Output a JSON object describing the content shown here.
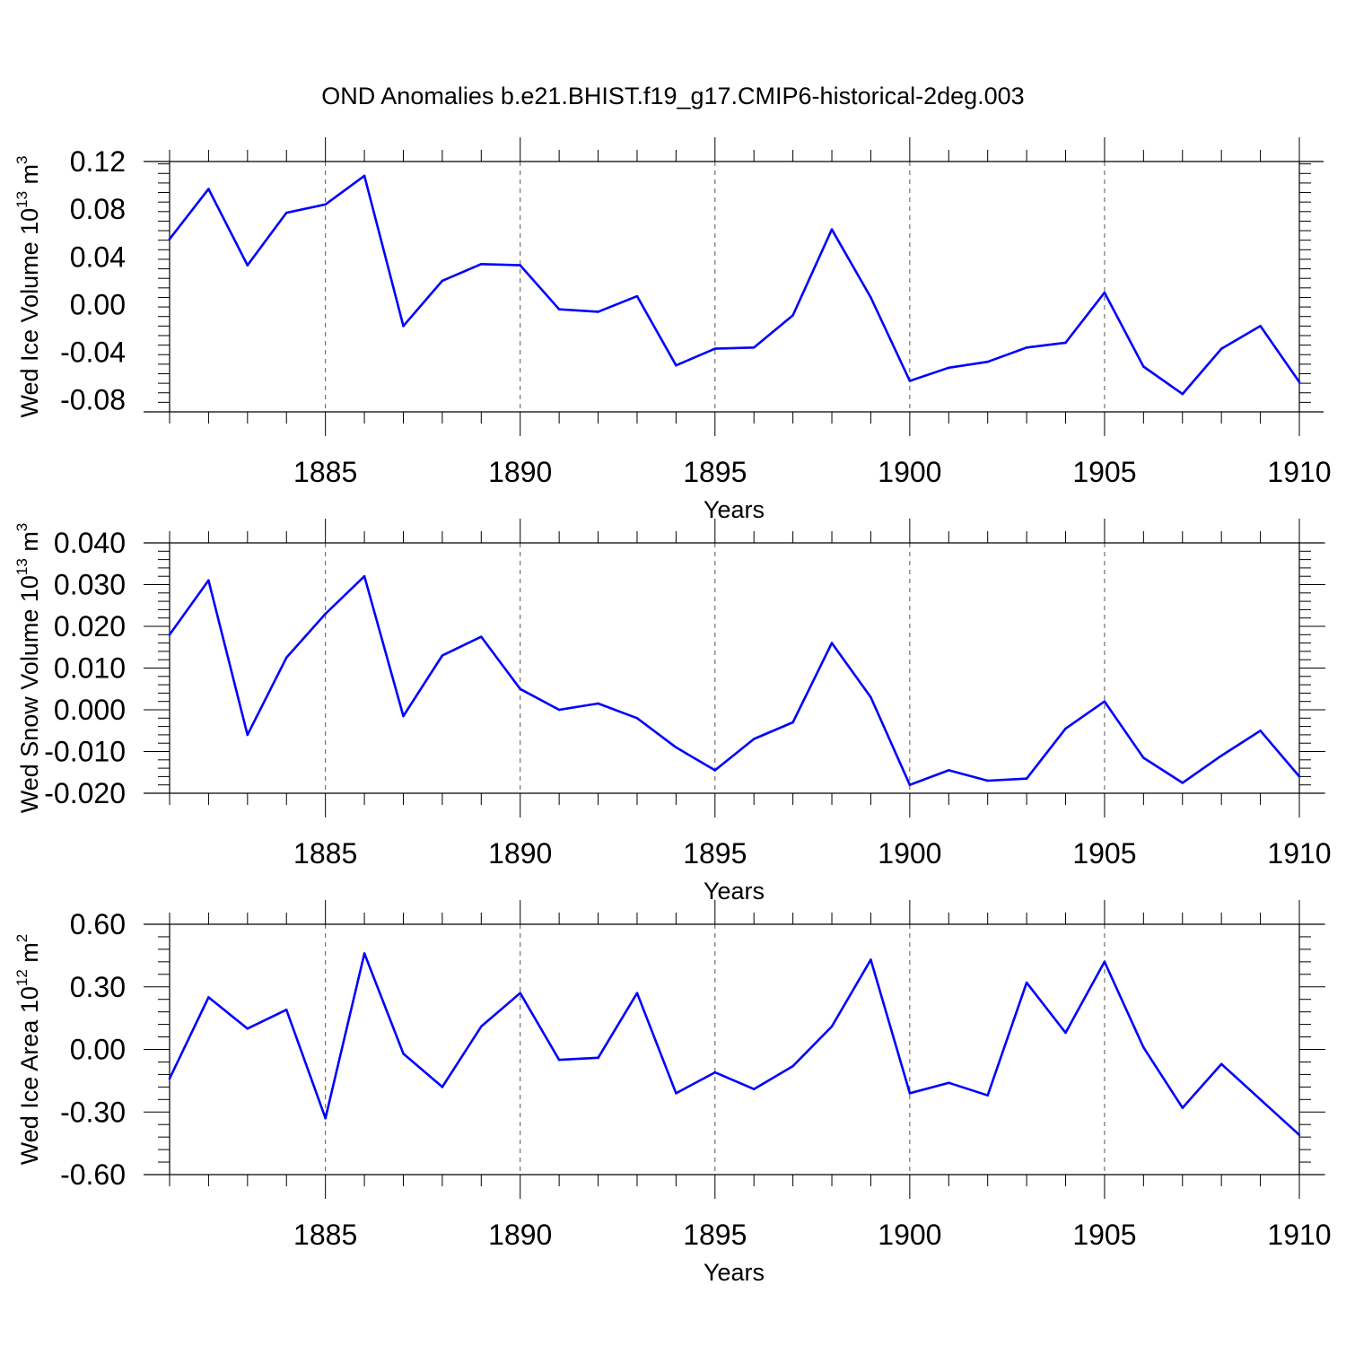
{
  "title": "OND Anomalies b.e21.BHIST.f19_g17.CMIP6-historical-2deg.003",
  "chart_data": [
    {
      "type": "line",
      "ylabel": {
        "main": "Wed Ice Volume 10",
        "sup": "13",
        "unit": " m",
        "unit_sup": "3"
      },
      "xlabel": "Years",
      "xlim": [
        1881,
        1910
      ],
      "ylim": [
        -0.09,
        0.12
      ],
      "yticks": [
        -0.08,
        -0.04,
        0.0,
        0.04,
        0.08,
        0.12
      ],
      "yticklabels": [
        "-0.08",
        "-0.04",
        "0.00",
        "0.04",
        "0.08",
        "0.12"
      ],
      "ydecimals": 2,
      "xticks": [
        1885,
        1890,
        1895,
        1900,
        1905,
        1910
      ],
      "xticklabels": [
        "1885",
        "1890",
        "1895",
        "1900",
        "1905",
        "1910"
      ],
      "grid": "vertical dashed at major x ticks",
      "x": [
        1881,
        1882,
        1883,
        1884,
        1885,
        1886,
        1887,
        1888,
        1889,
        1890,
        1891,
        1892,
        1893,
        1894,
        1895,
        1896,
        1897,
        1898,
        1899,
        1900,
        1901,
        1902,
        1903,
        1904,
        1905,
        1906,
        1907,
        1908,
        1909,
        1910
      ],
      "values": [
        0.055,
        0.097,
        0.033,
        0.077,
        0.084,
        0.108,
        -0.018,
        0.02,
        0.034,
        0.033,
        -0.004,
        -0.006,
        0.007,
        -0.051,
        -0.037,
        -0.036,
        -0.009,
        0.063,
        0.006,
        -0.064,
        -0.053,
        -0.048,
        -0.036,
        -0.032,
        0.01,
        -0.052,
        -0.075,
        -0.037,
        -0.018,
        -0.065
      ]
    },
    {
      "type": "line",
      "ylabel": {
        "main": "Wed Snow Volume 10",
        "sup": "13",
        "unit": " m",
        "unit_sup": "3"
      },
      "xlabel": "Years",
      "xlim": [
        1881,
        1910
      ],
      "ylim": [
        -0.02,
        0.04
      ],
      "yticks": [
        -0.02,
        -0.01,
        0.0,
        0.01,
        0.02,
        0.03,
        0.04
      ],
      "yticklabels": [
        "-0.020",
        "-0.010",
        "0.000",
        "0.010",
        "0.020",
        "0.030",
        "0.040"
      ],
      "ydecimals": 3,
      "xticks": [
        1885,
        1890,
        1895,
        1900,
        1905,
        1910
      ],
      "xticklabels": [
        "1885",
        "1890",
        "1895",
        "1900",
        "1905",
        "1910"
      ],
      "grid": "vertical dashed at major x ticks",
      "x": [
        1881,
        1882,
        1883,
        1884,
        1885,
        1886,
        1887,
        1888,
        1889,
        1890,
        1891,
        1892,
        1893,
        1894,
        1895,
        1896,
        1897,
        1898,
        1899,
        1900,
        1901,
        1902,
        1903,
        1904,
        1905,
        1906,
        1907,
        1908,
        1909,
        1910
      ],
      "values": [
        0.018,
        0.031,
        -0.006,
        0.0125,
        0.023,
        0.032,
        -0.0015,
        0.013,
        0.0175,
        0.005,
        0.0,
        0.0015,
        -0.002,
        -0.009,
        -0.0145,
        -0.007,
        -0.003,
        0.016,
        0.003,
        -0.018,
        -0.0145,
        -0.017,
        -0.0165,
        -0.0045,
        0.002,
        -0.0115,
        -0.0175,
        -0.011,
        -0.005,
        -0.016
      ]
    },
    {
      "type": "line",
      "ylabel": {
        "main": "Wed Ice Area 10",
        "sup": "12",
        "unit": " m",
        "unit_sup": "2"
      },
      "xlabel": "Years",
      "xlim": [
        1881,
        1910
      ],
      "ylim": [
        -0.6,
        0.6
      ],
      "yticks": [
        -0.6,
        -0.3,
        0.0,
        0.3,
        0.6
      ],
      "yticklabels": [
        "-0.60",
        "-0.30",
        "0.00",
        "0.30",
        "0.60"
      ],
      "ydecimals": 2,
      "xticks": [
        1885,
        1890,
        1895,
        1900,
        1905,
        1910
      ],
      "xticklabels": [
        "1885",
        "1890",
        "1895",
        "1900",
        "1905",
        "1910"
      ],
      "grid": "vertical dashed at major x ticks",
      "x": [
        1881,
        1882,
        1883,
        1884,
        1885,
        1886,
        1887,
        1888,
        1889,
        1890,
        1891,
        1892,
        1893,
        1894,
        1895,
        1896,
        1897,
        1898,
        1899,
        1900,
        1901,
        1902,
        1903,
        1904,
        1905,
        1906,
        1907,
        1908,
        1909,
        1910
      ],
      "values": [
        -0.14,
        0.25,
        0.1,
        0.19,
        -0.33,
        0.46,
        -0.02,
        -0.18,
        0.11,
        0.27,
        -0.05,
        -0.04,
        0.27,
        -0.21,
        -0.11,
        -0.19,
        -0.08,
        0.11,
        0.43,
        -0.21,
        -0.16,
        -0.22,
        0.32,
        0.08,
        0.42,
        0.01,
        -0.28,
        -0.07,
        -0.24,
        -0.41
      ]
    }
  ],
  "colors": {
    "series": "#0000ff",
    "axis": "#000000",
    "grid": "#555555"
  }
}
